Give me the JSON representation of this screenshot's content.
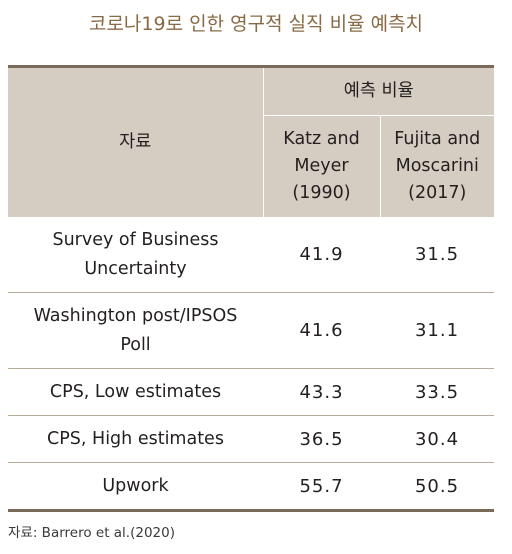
{
  "title": "코로나19로 인한 영구적 실직 비율 예측치",
  "table": {
    "source_header": "자료",
    "group_header": "예측 비율",
    "columns": [
      {
        "line1": "Katz and",
        "line2": "Meyer",
        "line3": "(1990)"
      },
      {
        "line1": "Fujita and",
        "line2": "Moscarini",
        "line3": "(2017)"
      }
    ],
    "rows": [
      {
        "line1": "Survey of Business",
        "line2": "Uncertainty",
        "katz": "41.9",
        "fujita": "31.5"
      },
      {
        "line1": "Washington post/IPSOS",
        "line2": "Poll",
        "katz": "41.6",
        "fujita": "31.1"
      },
      {
        "line1": "CPS, Low estimates",
        "katz": "43.3",
        "fujita": "33.5"
      },
      {
        "line1": "CPS, High estimates",
        "katz": "36.5",
        "fujita": "30.4"
      },
      {
        "line1": "Upwork",
        "katz": "55.7",
        "fujita": "50.5"
      }
    ]
  },
  "source_note": "자료: Barrero et al.(2020)"
}
